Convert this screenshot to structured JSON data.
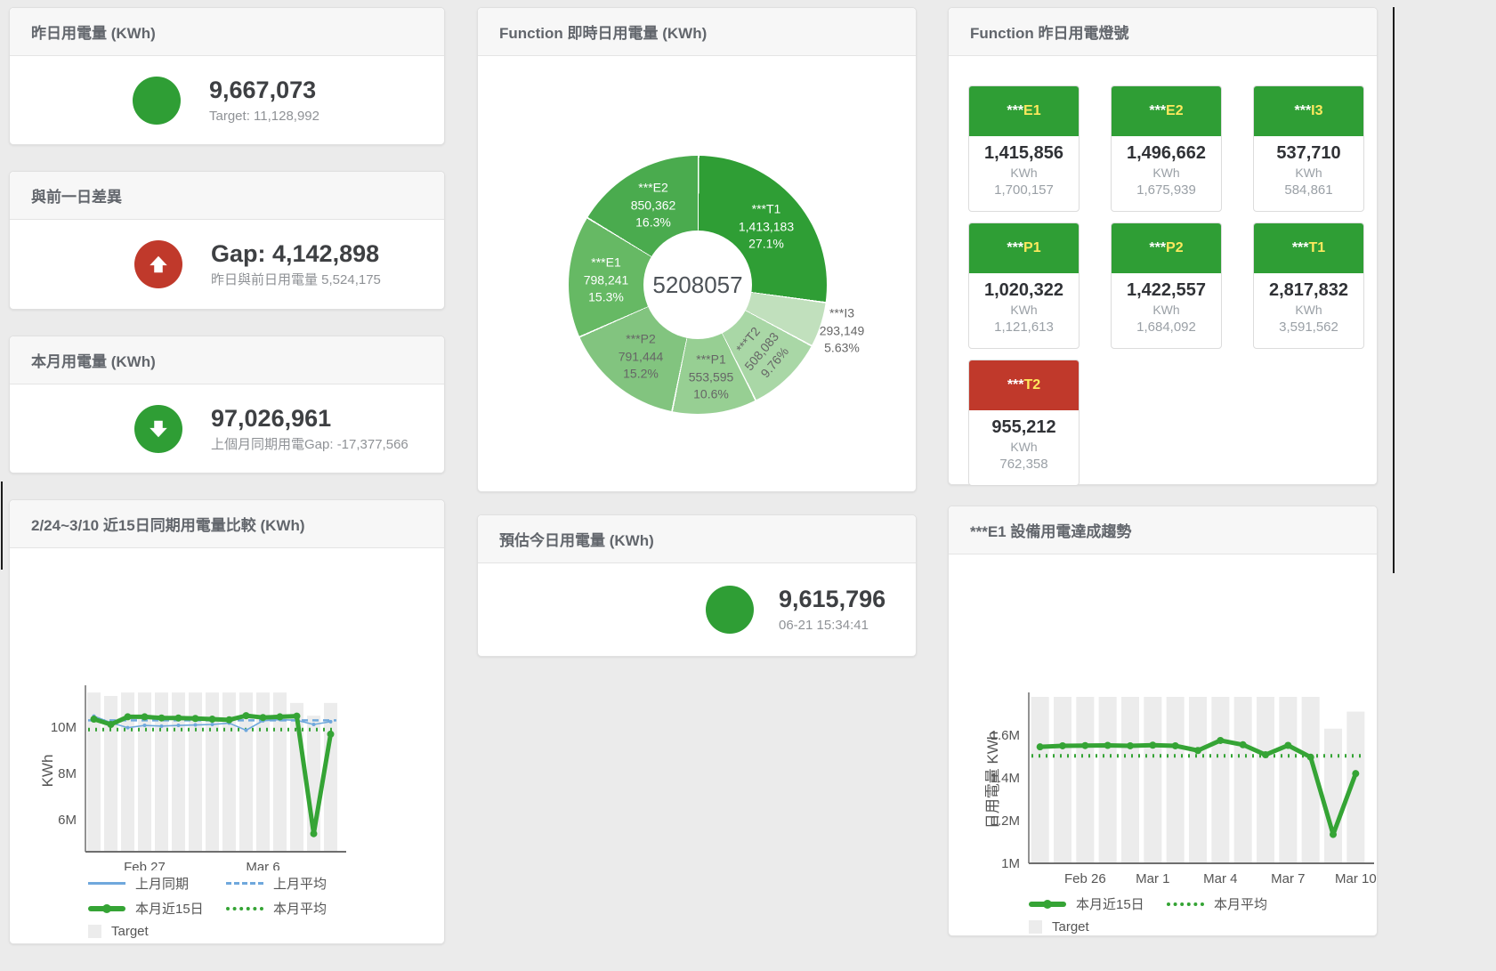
{
  "colors": {
    "green": "#2f9e35",
    "red": "#c0392b",
    "tile_code_yellow": "#ffe95e",
    "bar_gray": "#ececec",
    "blue_line": "#6fa8dc",
    "green_line": "#35a435"
  },
  "cards": {
    "yesterday": {
      "title": "昨日用電量 (KWh)",
      "value": "9,667,073",
      "subtext": "Target: 11,128,992",
      "circle_color": "#2f9e35"
    },
    "gap_prev_day": {
      "title": "與前一日差異",
      "value": "Gap: 4,142,898",
      "subtext": "昨日與前日用電量 5,524,175",
      "circle_color": "#c0392b"
    },
    "month": {
      "title": "本月用電量 (KWh)",
      "value": "97,026,961",
      "subtext": "上個月同期用電Gap: -17,377,566",
      "circle_color": "#2f9e35"
    },
    "estimate_today": {
      "title": "預估今日用電量 (KWh)",
      "value": "9,615,796",
      "subtext": "06-21 15:34:41",
      "circle_color": "#2f9e35"
    }
  },
  "lights": {
    "title": "Function 昨日用電燈號",
    "unit": "KWh",
    "tiles": [
      {
        "stars": "***",
        "code": "E1",
        "value": "1,415,856",
        "target": "1,700,157",
        "header_color": "#2f9e35"
      },
      {
        "stars": "***",
        "code": "E2",
        "value": "1,496,662",
        "target": "1,675,939",
        "header_color": "#2f9e35"
      },
      {
        "stars": "***",
        "code": "I3",
        "value": "537,710",
        "target": "584,861",
        "header_color": "#2f9e35"
      },
      {
        "stars": "***",
        "code": "P1",
        "value": "1,020,322",
        "target": "1,121,613",
        "header_color": "#2f9e35"
      },
      {
        "stars": "***",
        "code": "P2",
        "value": "1,422,557",
        "target": "1,684,092",
        "header_color": "#2f9e35"
      },
      {
        "stars": "***",
        "code": "T1",
        "value": "2,817,832",
        "target": "3,591,562",
        "header_color": "#2f9e35"
      },
      {
        "stars": "***",
        "code": "T2",
        "value": "955,212",
        "target": "762,358",
        "header_color": "#c0392b"
      }
    ]
  },
  "chart_data": [
    {
      "type": "pie",
      "title": "Function 即時日用電量 (KWh)",
      "center_total": "5208057",
      "segments": [
        {
          "name": "***T1",
          "value": 1413183,
          "value_label": "1,413,183",
          "pct": "27.1%",
          "pct_num": 27.1,
          "color": "#2f9e35",
          "label_color": "#ffffff"
        },
        {
          "name": "***I3",
          "value": 293149,
          "value_label": "293,149",
          "pct": "5.63%",
          "pct_num": 5.63,
          "color": "#c1e0bd",
          "label_color": "#666666"
        },
        {
          "name": "***T2",
          "value": 508083,
          "value_label": "508,083",
          "pct": "9.76%",
          "pct_num": 9.76,
          "color": "#a9d7a6",
          "label_color": "#666666"
        },
        {
          "name": "***P1",
          "value": 553595,
          "value_label": "553,595",
          "pct": "10.6%",
          "pct_num": 10.6,
          "color": "#97cf93",
          "label_color": "#666666"
        },
        {
          "name": "***P2",
          "value": 791444,
          "value_label": "791,444",
          "pct": "15.2%",
          "pct_num": 15.2,
          "color": "#82c47f",
          "label_color": "#666666"
        },
        {
          "name": "***E1",
          "value": 798241,
          "value_label": "798,241",
          "pct": "15.3%",
          "pct_num": 15.3,
          "color": "#66b964",
          "label_color": "#ffffff"
        },
        {
          "name": "***E2",
          "value": 850362,
          "value_label": "850,362",
          "pct": "16.3%",
          "pct_num": 16.3,
          "color": "#4aab4e",
          "label_color": "#ffffff"
        }
      ]
    },
    {
      "type": "line+bar",
      "title": "2/24~3/10 近15日同期用電量比較 (KWh)",
      "ylabel": "KWh",
      "unit": "M KWh",
      "ylim": [
        4.62,
        11.62
      ],
      "yticks": [
        {
          "v": 6,
          "label": "6M"
        },
        {
          "v": 8,
          "label": "8M"
        },
        {
          "v": 10,
          "label": "10M"
        }
      ],
      "categories": [
        "Feb 24",
        "Feb 25",
        "Feb 26",
        "Feb 27",
        "Feb 28",
        "Mar 1",
        "Mar 2",
        "Mar 3",
        "Mar 4",
        "Mar 5",
        "Mar 6",
        "Mar 7",
        "Mar 8",
        "Mar 9",
        "Mar 10"
      ],
      "xtick_labels": [
        {
          "index": 3,
          "label": "Feb 27"
        },
        {
          "index": 10,
          "label": "Mar 6"
        }
      ],
      "bars": {
        "name": "Target",
        "color": "#ececec",
        "values": [
          11.5,
          11.35,
          11.5,
          11.5,
          11.5,
          11.5,
          11.5,
          11.5,
          11.5,
          11.5,
          11.5,
          11.5,
          11.05,
          10.5,
          11.05
        ]
      },
      "series": [
        {
          "name": "上月同期",
          "color": "#6fa8dc",
          "width": 1.6,
          "style": "solid",
          "values": [
            10.48,
            10.2,
            9.98,
            10.08,
            10.05,
            10.08,
            10.1,
            10.12,
            10.18,
            9.87,
            10.28,
            10.33,
            10.3,
            10.12,
            10.24
          ]
        },
        {
          "name": "本月近15日",
          "color": "#35a435",
          "width": 5,
          "style": "solid",
          "values": [
            10.35,
            10.12,
            10.45,
            10.45,
            10.4,
            10.4,
            10.38,
            10.35,
            10.32,
            10.5,
            10.42,
            10.45,
            10.48,
            5.4,
            9.7
          ]
        }
      ],
      "avg_lines": [
        {
          "name": "上月平均",
          "color": "#6fa8dc",
          "style": "dashed",
          "value": 10.3
        },
        {
          "name": "本月平均",
          "color": "#35a435",
          "style": "dotted",
          "value": 9.9
        }
      ],
      "legend": [
        {
          "label": "上月同期",
          "swatch": "line",
          "color": "#6fa8dc"
        },
        {
          "label": "上月平均",
          "swatch": "dashed",
          "color": "#6fa8dc"
        },
        {
          "label": "本月近15日",
          "swatch": "thick",
          "color": "#35a435"
        },
        {
          "label": "本月平均",
          "swatch": "dotted",
          "color": "#35a435"
        },
        {
          "label": "Target",
          "swatch": "box",
          "color": "#ececec"
        }
      ]
    },
    {
      "type": "line+bar",
      "title": "***E1 設備用電達成趨勢",
      "ylabel": "日用電量 KWh",
      "unit": "M KWh",
      "ylim": [
        1.0,
        1.779
      ],
      "yticks": [
        {
          "v": 1.0,
          "label": "1M"
        },
        {
          "v": 1.2,
          "label": "1.2M"
        },
        {
          "v": 1.4,
          "label": "1.4M"
        },
        {
          "v": 1.6,
          "label": "1.6M"
        }
      ],
      "categories": [
        "Feb 24",
        "Feb 25",
        "Feb 26",
        "Feb 27",
        "Feb 28",
        "Mar 1",
        "Mar 2",
        "Mar 3",
        "Mar 4",
        "Mar 5",
        "Mar 6",
        "Mar 7",
        "Mar 8",
        "Mar 9",
        "Mar 10"
      ],
      "xtick_labels": [
        {
          "index": 2,
          "label": "Feb 26"
        },
        {
          "index": 5,
          "label": "Mar 1"
        },
        {
          "index": 8,
          "label": "Mar 4"
        },
        {
          "index": 11,
          "label": "Mar 7"
        },
        {
          "index": 14,
          "label": "Mar 10"
        }
      ],
      "bars": {
        "name": "Target",
        "color": "#ececec",
        "values": [
          1.78,
          1.78,
          1.78,
          1.78,
          1.78,
          1.78,
          1.78,
          1.78,
          1.78,
          1.78,
          1.78,
          1.78,
          1.78,
          1.63,
          1.71
        ]
      },
      "series": [
        {
          "name": "本月近15日",
          "color": "#35a435",
          "width": 5,
          "style": "solid",
          "values": [
            1.545,
            1.55,
            1.551,
            1.552,
            1.55,
            1.553,
            1.55,
            1.528,
            1.575,
            1.555,
            1.508,
            1.552,
            1.497,
            1.135,
            1.42
          ]
        }
      ],
      "avg_lines": [
        {
          "name": "本月平均",
          "color": "#35a435",
          "style": "dotted",
          "value": 1.503
        }
      ],
      "legend": [
        {
          "label": "本月近15日",
          "swatch": "thick",
          "color": "#35a435"
        },
        {
          "label": "本月平均",
          "swatch": "dotted",
          "color": "#35a435"
        },
        {
          "label": "Target",
          "swatch": "box",
          "color": "#ececec"
        }
      ]
    }
  ]
}
